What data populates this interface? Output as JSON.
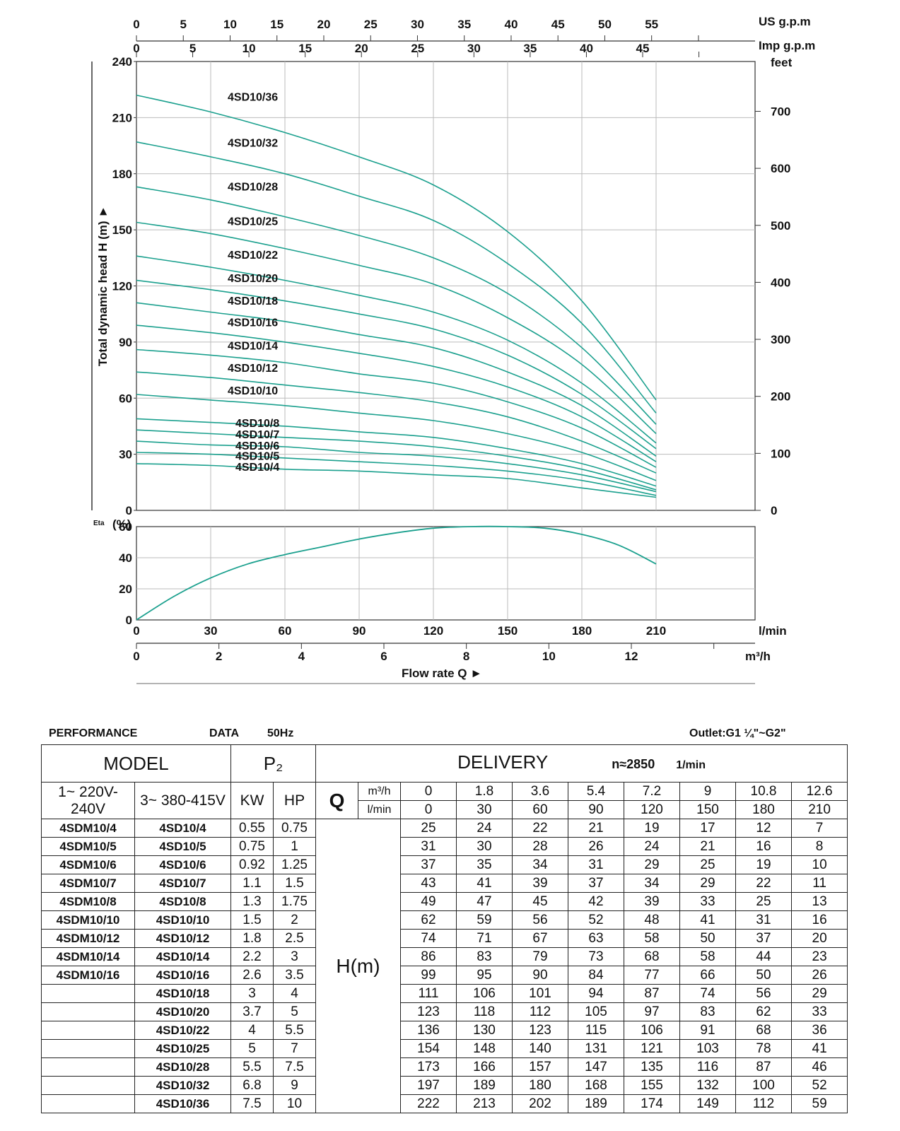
{
  "chart_data": {
    "type": "line",
    "head_chart": {
      "ylabel": "Total dynamic head H (m)",
      "ylim": [
        0,
        240
      ],
      "yticks": [
        0,
        30,
        60,
        90,
        120,
        150,
        180,
        210,
        240
      ],
      "right_axis_label": "feet",
      "right_ticks": [
        0,
        100,
        200,
        300,
        400,
        500,
        600,
        700
      ],
      "top_axis_us": {
        "label": "US g.p.m",
        "ticks": [
          0,
          5,
          10,
          15,
          20,
          25,
          30,
          35,
          40,
          45,
          50,
          55
        ]
      },
      "top_axis_imp": {
        "label": "Imp g.p.m",
        "ticks": [
          0,
          5,
          10,
          15,
          20,
          25,
          30,
          35,
          40,
          45
        ]
      },
      "x_lmin": [
        0,
        30,
        60,
        90,
        120,
        150,
        180,
        210
      ],
      "series": [
        {
          "name": "4SD10/4",
          "values": [
            25,
            24,
            22,
            21,
            19,
            17,
            12,
            7
          ]
        },
        {
          "name": "4SD10/5",
          "values": [
            31,
            30,
            28,
            26,
            24,
            21,
            16,
            8
          ]
        },
        {
          "name": "4SD10/6",
          "values": [
            37,
            35,
            34,
            31,
            29,
            25,
            19,
            10
          ]
        },
        {
          "name": "4SD10/7",
          "values": [
            43,
            41,
            39,
            37,
            34,
            29,
            22,
            11
          ]
        },
        {
          "name": "4SD10/8",
          "values": [
            49,
            47,
            45,
            42,
            39,
            33,
            25,
            13
          ]
        },
        {
          "name": "4SD10/10",
          "values": [
            62,
            59,
            56,
            52,
            48,
            41,
            31,
            16
          ]
        },
        {
          "name": "4SD10/12",
          "values": [
            74,
            71,
            67,
            63,
            58,
            50,
            37,
            20
          ]
        },
        {
          "name": "4SD10/14",
          "values": [
            86,
            83,
            79,
            73,
            68,
            58,
            44,
            23
          ]
        },
        {
          "name": "4SD10/16",
          "values": [
            99,
            95,
            90,
            84,
            77,
            66,
            50,
            26
          ]
        },
        {
          "name": "4SD10/18",
          "values": [
            111,
            106,
            101,
            94,
            87,
            74,
            56,
            29
          ]
        },
        {
          "name": "4SD10/20",
          "values": [
            123,
            118,
            112,
            105,
            97,
            83,
            62,
            33
          ]
        },
        {
          "name": "4SD10/22",
          "values": [
            136,
            130,
            123,
            115,
            106,
            91,
            68,
            36
          ]
        },
        {
          "name": "4SD10/25",
          "values": [
            154,
            148,
            140,
            131,
            121,
            103,
            78,
            41
          ]
        },
        {
          "name": "4SD10/28",
          "values": [
            173,
            166,
            157,
            147,
            135,
            116,
            87,
            46
          ]
        },
        {
          "name": "4SD10/32",
          "values": [
            197,
            189,
            180,
            168,
            155,
            132,
            100,
            52
          ]
        },
        {
          "name": "4SD10/36",
          "values": [
            222,
            213,
            202,
            189,
            174,
            149,
            112,
            59
          ]
        }
      ]
    },
    "eta_chart": {
      "ylabel_small": "Eta",
      "ylabel": "(%)",
      "ylim": [
        0,
        60
      ],
      "yticks": [
        0,
        20,
        40,
        60
      ],
      "x_lmin": [
        0,
        15,
        30,
        45,
        60,
        75,
        90,
        105,
        120,
        135,
        150,
        165,
        180,
        195,
        210
      ],
      "values": [
        0,
        15,
        27,
        36,
        42,
        47,
        52,
        56,
        59,
        60,
        60,
        59,
        55,
        48,
        36
      ]
    },
    "x_axis_lmin": {
      "label": "l/min",
      "ticks": [
        0,
        30,
        60,
        90,
        120,
        150,
        180,
        210
      ]
    },
    "x_axis_m3h": {
      "label": "m³/h",
      "ticks": [
        0,
        2,
        4,
        6,
        8,
        10,
        12
      ]
    },
    "xlabel": "Flow rate Q ►",
    "line_color": "#1ba08e",
    "grid": true
  },
  "table": {
    "title_left": "PERFORMANCE",
    "title_data": "DATA",
    "title_hz": "50Hz",
    "outlet": "Outlet:G1 ¼\"~G2\"",
    "model_header": "MODEL",
    "p2_header": "P₂",
    "delivery_header": "DELIVERY",
    "speed": "n≈2850",
    "speed_unit": "1/min",
    "single_phase": "1~ 220V-240V",
    "three_phase": "3~ 380-415V",
    "kw": "KW",
    "hp": "HP",
    "q": "Q",
    "m3h_unit": "m³/h",
    "lmin_unit": "l/min",
    "m3h_values": [
      "0",
      "1.8",
      "3.6",
      "5.4",
      "7.2",
      "9",
      "10.8",
      "12.6"
    ],
    "lmin_values": [
      "0",
      "30",
      "60",
      "90",
      "120",
      "150",
      "180",
      "210"
    ],
    "hm": "H(m)",
    "rows": [
      {
        "m1": "4SDM10/4",
        "m3": "4SD10/4",
        "kw": "0.55",
        "hp": "0.75",
        "h": [
          "25",
          "24",
          "22",
          "21",
          "19",
          "17",
          "12",
          "7"
        ]
      },
      {
        "m1": "4SDM10/5",
        "m3": "4SD10/5",
        "kw": "0.75",
        "hp": "1",
        "h": [
          "31",
          "30",
          "28",
          "26",
          "24",
          "21",
          "16",
          "8"
        ]
      },
      {
        "m1": "4SDM10/6",
        "m3": "4SD10/6",
        "kw": "0.92",
        "hp": "1.25",
        "h": [
          "37",
          "35",
          "34",
          "31",
          "29",
          "25",
          "19",
          "10"
        ]
      },
      {
        "m1": "4SDM10/7",
        "m3": "4SD10/7",
        "kw": "1.1",
        "hp": "1.5",
        "h": [
          "43",
          "41",
          "39",
          "37",
          "34",
          "29",
          "22",
          "11"
        ]
      },
      {
        "m1": "4SDM10/8",
        "m3": "4SD10/8",
        "kw": "1.3",
        "hp": "1.75",
        "h": [
          "49",
          "47",
          "45",
          "42",
          "39",
          "33",
          "25",
          "13"
        ]
      },
      {
        "m1": "4SDM10/10",
        "m3": "4SD10/10",
        "kw": "1.5",
        "hp": "2",
        "h": [
          "62",
          "59",
          "56",
          "52",
          "48",
          "41",
          "31",
          "16"
        ]
      },
      {
        "m1": "4SDM10/12",
        "m3": "4SD10/12",
        "kw": "1.8",
        "hp": "2.5",
        "h": [
          "74",
          "71",
          "67",
          "63",
          "58",
          "50",
          "37",
          "20"
        ]
      },
      {
        "m1": "4SDM10/14",
        "m3": "4SD10/14",
        "kw": "2.2",
        "hp": "3",
        "h": [
          "86",
          "83",
          "79",
          "73",
          "68",
          "58",
          "44",
          "23"
        ]
      },
      {
        "m1": "4SDM10/16",
        "m3": "4SD10/16",
        "kw": "2.6",
        "hp": "3.5",
        "h": [
          "99",
          "95",
          "90",
          "84",
          "77",
          "66",
          "50",
          "26"
        ]
      },
      {
        "m1": "",
        "m3": "4SD10/18",
        "kw": "3",
        "hp": "4",
        "h": [
          "111",
          "106",
          "101",
          "94",
          "87",
          "74",
          "56",
          "29"
        ]
      },
      {
        "m1": "",
        "m3": "4SD10/20",
        "kw": "3.7",
        "hp": "5",
        "h": [
          "123",
          "118",
          "112",
          "105",
          "97",
          "83",
          "62",
          "33"
        ]
      },
      {
        "m1": "",
        "m3": "4SD10/22",
        "kw": "4",
        "hp": "5.5",
        "h": [
          "136",
          "130",
          "123",
          "115",
          "106",
          "91",
          "68",
          "36"
        ]
      },
      {
        "m1": "",
        "m3": "4SD10/25",
        "kw": "5",
        "hp": "7",
        "h": [
          "154",
          "148",
          "140",
          "131",
          "121",
          "103",
          "78",
          "41"
        ]
      },
      {
        "m1": "",
        "m3": "4SD10/28",
        "kw": "5.5",
        "hp": "7.5",
        "h": [
          "173",
          "166",
          "157",
          "147",
          "135",
          "116",
          "87",
          "46"
        ]
      },
      {
        "m1": "",
        "m3": "4SD10/32",
        "kw": "6.8",
        "hp": "9",
        "h": [
          "197",
          "189",
          "180",
          "168",
          "155",
          "132",
          "100",
          "52"
        ]
      },
      {
        "m1": "",
        "m3": "4SD10/36",
        "kw": "7.5",
        "hp": "10",
        "h": [
          "222",
          "213",
          "202",
          "189",
          "174",
          "149",
          "112",
          "59"
        ]
      }
    ]
  }
}
